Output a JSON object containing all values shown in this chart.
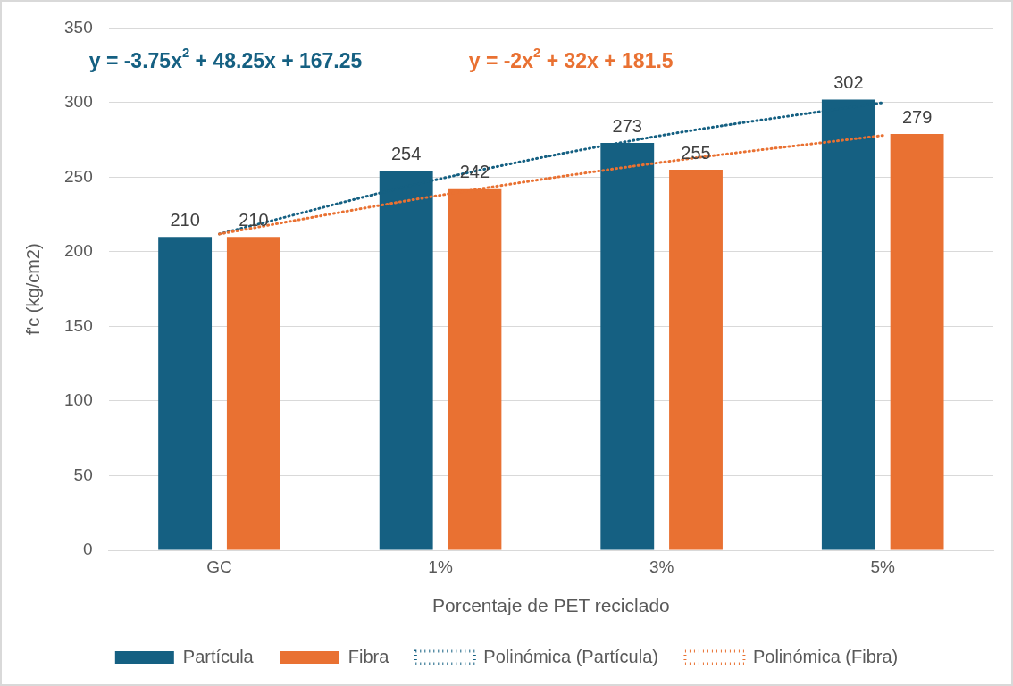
{
  "chart_data": {
    "type": "bar",
    "xlabel": "Porcentaje de PET reciclado",
    "ylabel": "f'c (kg/cm2)",
    "categories": [
      "GC",
      "1%",
      "3%",
      "5%"
    ],
    "series": [
      {
        "name": "Partícula",
        "color": "#156082",
        "values": [
          210,
          254,
          273,
          302
        ],
        "value_labels": [
          "210",
          "254",
          "273",
          "302"
        ]
      },
      {
        "name": "Fibra",
        "color": "#e97132",
        "values": [
          210,
          242,
          255,
          279
        ],
        "value_labels": [
          "210",
          "242",
          "255",
          "279"
        ]
      },
      {
        "name": "Polinómica (Partícula)",
        "type": "line",
        "color": "#156082",
        "line_style": "dotted",
        "marker": "none",
        "x": [
          "GC",
          "1%",
          "3%",
          "5%"
        ],
        "values": [
          212,
          249,
          278,
          300
        ]
      },
      {
        "name": "Polinómica (Fibra)",
        "type": "line",
        "color": "#e97132",
        "line_style": "dotted",
        "marker": "none",
        "x": [
          "GC",
          "1%",
          "3%",
          "5%"
        ],
        "values": [
          212,
          238,
          260,
          278
        ]
      }
    ],
    "annotations": [
      "y = -3.75x$^{2}$ + 48.25x + 167.25",
      "y = -2x$^{2}$ + 32x + 181.5"
    ],
    "ylim": [
      0,
      350
    ],
    "yticks": [
      0,
      50,
      100,
      150,
      200,
      250,
      300,
      350
    ],
    "grid": "y",
    "legend": "bottom"
  }
}
